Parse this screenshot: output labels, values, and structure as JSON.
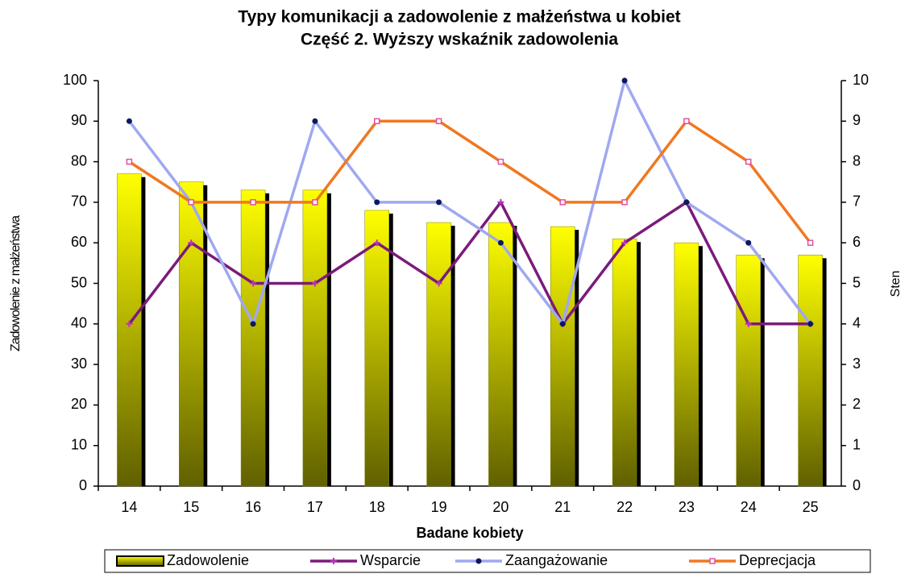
{
  "chart_data": {
    "type": "bar",
    "title": "Typy komunikacji a zadowolenie z małżeństwa u kobiet",
    "subtitle": "Część 2. Wyższy wskaźnik zadowolenia",
    "x_label": "Badane kobiety",
    "y_label": "Zadowolenie z małżeństwa",
    "y2_label": "Sten",
    "categories": [
      "14",
      "15",
      "16",
      "17",
      "18",
      "19",
      "20",
      "21",
      "22",
      "23",
      "24",
      "25"
    ],
    "series": [
      {
        "name": "Zadowolenie",
        "type": "bar",
        "color": "#ffff00",
        "values": [
          77,
          75,
          73,
          73,
          68,
          65,
          65,
          64,
          61,
          60,
          57,
          57
        ]
      },
      {
        "name": "Wsparcie",
        "type": "line",
        "axis": "y2",
        "color": "#7b1a7b",
        "marker_color": "#c030c0",
        "values": [
          4,
          6,
          5,
          5,
          6,
          5,
          7,
          4,
          6,
          7,
          4,
          4
        ]
      },
      {
        "name": "Zaangażowanie",
        "type": "line",
        "axis": "y2",
        "color": "#a0a8f0",
        "marker_color": "#0a1a60",
        "values": [
          9,
          7,
          4,
          9,
          7,
          7,
          6,
          4,
          10,
          7,
          6,
          4
        ]
      },
      {
        "name": "Deprecjacja",
        "type": "line",
        "axis": "y2",
        "color": "#f07820",
        "marker_color": "#e050a0",
        "values": [
          8,
          7,
          7,
          7,
          9,
          9,
          8,
          7,
          7,
          9,
          8,
          6
        ]
      }
    ],
    "ylim": [
      0,
      100
    ],
    "yticks": [
      0,
      10,
      20,
      30,
      40,
      50,
      60,
      70,
      80,
      90,
      100
    ],
    "y2lim": [
      0,
      10
    ],
    "y2ticks": [
      0,
      1,
      2,
      3,
      4,
      5,
      6,
      7,
      8,
      9,
      10
    ],
    "grid": false,
    "legend": "bottom"
  }
}
